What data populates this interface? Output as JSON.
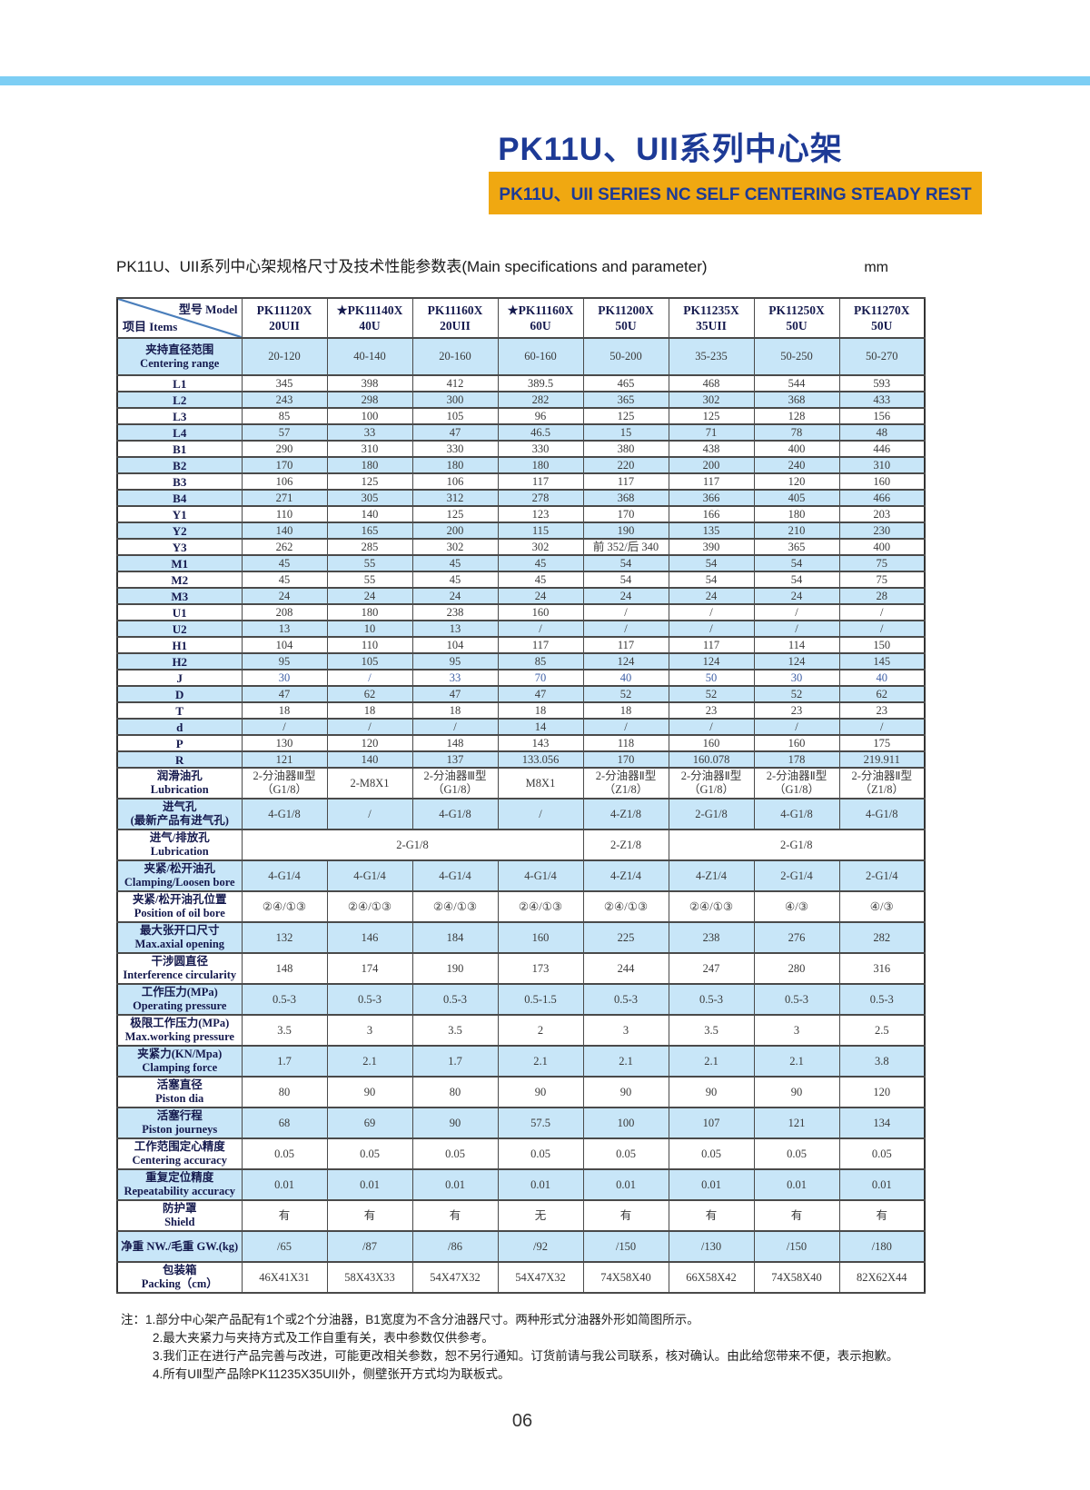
{
  "colors": {
    "bar_blue": "#7DCEF4",
    "banner_orange": "#F0A811",
    "title_blue": "#1D3A96",
    "row_blue": "#C8E6F8",
    "head_navy": "#151A4E",
    "value_text": "#3A3A3A",
    "value_blue": "#3D5FA6",
    "border_dark": "#4A4A4A"
  },
  "header": {
    "title": "PK11U、UII系列中心架",
    "banner": "PK11U、UII SERIES NC SELF CENTERING STEADY REST"
  },
  "caption": {
    "text": "PK11U、UII系列中心架规格尺寸及技术性能参数表(Main specifications and parameter)",
    "unit": "mm"
  },
  "table": {
    "corner": {
      "top": "型号 Model",
      "bottom": "项目 Items"
    },
    "models": [
      {
        "name": "PK11120X",
        "variant": "20UII"
      },
      {
        "name": "★PK11140X",
        "variant": "40U"
      },
      {
        "name": "PK11160X",
        "variant": "20UII"
      },
      {
        "name": "★PK11160X",
        "variant": "60U"
      },
      {
        "name": "PK11200X",
        "variant": "50U"
      },
      {
        "name": "PK11235X",
        "variant": "35UII"
      },
      {
        "name": "PK11250X",
        "variant": "50U"
      },
      {
        "name": "PK11270X",
        "variant": "50U"
      }
    ],
    "rows": [
      {
        "label_cn": "夹持直径范围",
        "label_en": "Centering range",
        "first": true,
        "values": [
          "20-120",
          "40-140",
          "20-160",
          "60-160",
          "50-200",
          "35-235",
          "50-250",
          "50-270"
        ]
      },
      {
        "label_cn": "L1",
        "label_en": "",
        "values": [
          "345",
          "398",
          "412",
          "389.5",
          "465",
          "468",
          "544",
          "593"
        ]
      },
      {
        "label_cn": "L2",
        "label_en": "",
        "values": [
          "243",
          "298",
          "300",
          "282",
          "365",
          "302",
          "368",
          "433"
        ]
      },
      {
        "label_cn": "L3",
        "label_en": "",
        "values": [
          "85",
          "100",
          "105",
          "96",
          "125",
          "125",
          "128",
          "156"
        ]
      },
      {
        "label_cn": "L4",
        "label_en": "",
        "values": [
          "57",
          "33",
          "47",
          "46.5",
          "15",
          "71",
          "78",
          "48"
        ]
      },
      {
        "label_cn": "B1",
        "label_en": "",
        "values": [
          "290",
          "310",
          "330",
          "330",
          "380",
          "438",
          "400",
          "446"
        ]
      },
      {
        "label_cn": "B2",
        "label_en": "",
        "values": [
          "170",
          "180",
          "180",
          "180",
          "220",
          "200",
          "240",
          "310"
        ]
      },
      {
        "label_cn": "B3",
        "label_en": "",
        "values": [
          "106",
          "125",
          "106",
          "117",
          "117",
          "117",
          "120",
          "160"
        ]
      },
      {
        "label_cn": "B4",
        "label_en": "",
        "values": [
          "271",
          "305",
          "312",
          "278",
          "368",
          "366",
          "405",
          "466"
        ]
      },
      {
        "label_cn": "Y1",
        "label_en": "",
        "values": [
          "110",
          "140",
          "125",
          "123",
          "170",
          "166",
          "180",
          "203"
        ]
      },
      {
        "label_cn": "Y2",
        "label_en": "",
        "values": [
          "140",
          "165",
          "200",
          "115",
          "190",
          "135",
          "210",
          "230"
        ]
      },
      {
        "label_cn": "Y3",
        "label_en": "",
        "values": [
          "262",
          "285",
          "302",
          "302",
          "前 352/后 340",
          "390",
          "365",
          "400"
        ]
      },
      {
        "label_cn": "M1",
        "label_en": "",
        "values": [
          "45",
          "55",
          "45",
          "45",
          "54",
          "54",
          "54",
          "75"
        ]
      },
      {
        "label_cn": "M2",
        "label_en": "",
        "values": [
          "45",
          "55",
          "45",
          "45",
          "54",
          "54",
          "54",
          "75"
        ]
      },
      {
        "label_cn": "M3",
        "label_en": "",
        "values": [
          "24",
          "24",
          "24",
          "24",
          "24",
          "24",
          "24",
          "28"
        ]
      },
      {
        "label_cn": "U1",
        "label_en": "",
        "values": [
          "208",
          "180",
          "238",
          "160",
          "/",
          "/",
          "/",
          "/"
        ]
      },
      {
        "label_cn": "U2",
        "label_en": "",
        "values": [
          "13",
          "10",
          "13",
          "/",
          "/",
          "/",
          "/",
          "/"
        ]
      },
      {
        "label_cn": "H1",
        "label_en": "",
        "values": [
          "104",
          "110",
          "104",
          "117",
          "117",
          "117",
          "114",
          "150"
        ]
      },
      {
        "label_cn": "H2",
        "label_en": "",
        "values": [
          "95",
          "105",
          "95",
          "85",
          "124",
          "124",
          "124",
          "145"
        ]
      },
      {
        "label_cn": "J",
        "label_en": "",
        "value_class": "blue-values",
        "values": [
          "30",
          "/",
          "33",
          "70",
          "40",
          "50",
          "30",
          "40"
        ]
      },
      {
        "label_cn": "D",
        "label_en": "",
        "values": [
          "47",
          "62",
          "47",
          "47",
          "52",
          "52",
          "52",
          "62"
        ]
      },
      {
        "label_cn": "T",
        "label_en": "",
        "values": [
          "18",
          "18",
          "18",
          "18",
          "18",
          "23",
          "23",
          "23"
        ]
      },
      {
        "label_cn": "d",
        "label_en": "",
        "values": [
          "/",
          "/",
          "/",
          "14",
          "/",
          "/",
          "/",
          "/"
        ]
      },
      {
        "label_cn": "P",
        "label_en": "",
        "values": [
          "130",
          "120",
          "148",
          "143",
          "118",
          "160",
          "160",
          "175"
        ]
      },
      {
        "label_cn": "R",
        "label_en": "",
        "values": [
          "121",
          "140",
          "137",
          "133.056",
          "170",
          "160.078",
          "178",
          "219.911"
        ]
      },
      {
        "label_cn": "润滑油孔",
        "label_en": "Lubrication",
        "values": [
          "2-分油器Ⅲ型\n（G1/8）",
          "2-M8X1",
          "2-分油器Ⅲ型\n（G1/8）",
          "M8X1",
          "2-分油器Ⅱ型\n（Z1/8）",
          "2-分油器Ⅱ型\n（G1/8）",
          "2-分油器Ⅱ型\n（G1/8）",
          "2-分油器Ⅱ型\n（Z1/8）"
        ]
      },
      {
        "label_cn": "进气孔",
        "label_en": "(最新产品有进气孔)",
        "values": [
          "4-G1/8",
          "/",
          "4-G1/8",
          "/",
          "4-Z1/8",
          "2-G1/8",
          "4-G1/8",
          "4-G1/8"
        ]
      },
      {
        "label_cn": "进气/排放孔",
        "label_en": "Lubrication",
        "merged": [
          {
            "span": 4,
            "value": "2-G1/8"
          },
          {
            "span": 1,
            "value": "2-Z1/8"
          },
          {
            "span": 3,
            "value": "2-G1/8"
          }
        ]
      },
      {
        "label_cn": "夹紧/松开油孔",
        "label_en": "Clamping/Loosen bore",
        "values": [
          "4-G1/4",
          "4-G1/4",
          "4-G1/4",
          "4-G1/4",
          "4-Z1/4",
          "4-Z1/4",
          "2-G1/4",
          "2-G1/4"
        ]
      },
      {
        "label_cn": "夹紧/松开油孔位置",
        "label_en": "Position of oil bore",
        "values": [
          "②④/①③",
          "②④/①③",
          "②④/①③",
          "②④/①③",
          "②④/①③",
          "②④/①③",
          "④/③",
          "④/③"
        ]
      },
      {
        "label_cn": "最大张开口尺寸",
        "label_en": "Max.axial opening",
        "values": [
          "132",
          "146",
          "184",
          "160",
          "225",
          "238",
          "276",
          "282"
        ]
      },
      {
        "label_cn": "干涉圆直径",
        "label_en": "Interference circularity",
        "values": [
          "148",
          "174",
          "190",
          "173",
          "244",
          "247",
          "280",
          "316"
        ]
      },
      {
        "label_cn": "工作压力(MPa)",
        "label_en": "Operating pressure",
        "values": [
          "0.5-3",
          "0.5-3",
          "0.5-3",
          "0.5-1.5",
          "0.5-3",
          "0.5-3",
          "0.5-3",
          "0.5-3"
        ]
      },
      {
        "label_cn": "极限工作压力(MPa)",
        "label_en": "Max.working pressure",
        "values": [
          "3.5",
          "3",
          "3.5",
          "2",
          "3",
          "3.5",
          "3",
          "2.5"
        ]
      },
      {
        "label_cn": "夹紧力(KN/Mpa)",
        "label_en": "Clamping force",
        "values": [
          "1.7",
          "2.1",
          "1.7",
          "2.1",
          "2.1",
          "2.1",
          "2.1",
          "3.8"
        ]
      },
      {
        "label_cn": "活塞直径",
        "label_en": "Piston dia",
        "values": [
          "80",
          "90",
          "80",
          "90",
          "90",
          "90",
          "90",
          "120"
        ]
      },
      {
        "label_cn": "活塞行程",
        "label_en": "Piston journeys",
        "values": [
          "68",
          "69",
          "90",
          "57.5",
          "100",
          "107",
          "121",
          "134"
        ]
      },
      {
        "label_cn": "工作范围定心精度",
        "label_en": "Centering accuracy",
        "values": [
          "0.05",
          "0.05",
          "0.05",
          "0.05",
          "0.05",
          "0.05",
          "0.05",
          "0.05"
        ]
      },
      {
        "label_cn": "重复定位精度",
        "label_en": "Repeatability accuracy",
        "values": [
          "0.01",
          "0.01",
          "0.01",
          "0.01",
          "0.01",
          "0.01",
          "0.01",
          "0.01"
        ]
      },
      {
        "label_cn": "防护罩",
        "label_en": "Shield",
        "values": [
          "有",
          "有",
          "有",
          "无",
          "有",
          "有",
          "有",
          "有"
        ]
      },
      {
        "label_cn": "净重 NW./毛重 GW.(kg)",
        "label_en": "",
        "values": [
          "/65",
          "/87",
          "/86",
          "/92",
          "/150",
          "/130",
          "/150",
          "/180"
        ]
      },
      {
        "label_cn": "包装箱",
        "label_en": "Packing（cm）",
        "values": [
          "46X41X31",
          "58X43X33",
          "54X47X32",
          "54X47X32",
          "74X58X40",
          "66X58X42",
          "74X58X40",
          "82X62X44"
        ]
      }
    ]
  },
  "notes": {
    "prefix": "注：",
    "items": [
      "1.部分中心架产品配有1个或2个分油器，B1宽度为不含分油器尺寸。两种形式分油器外形如简图所示。",
      "2.最大夹紧力与夹持方式及工作自重有关，表中参数仅供参考。",
      "3.我们正在进行产品完善与改进，可能更改相关参数，恕不另行通知。订货前请与我公司联系，核对确认。由此给您带来不便，表示抱歉。",
      "4.所有UⅡ型产品除PK11235X35UII外，侧壁张开方式均为联板式。"
    ]
  },
  "footer": {
    "page_number": "06"
  }
}
